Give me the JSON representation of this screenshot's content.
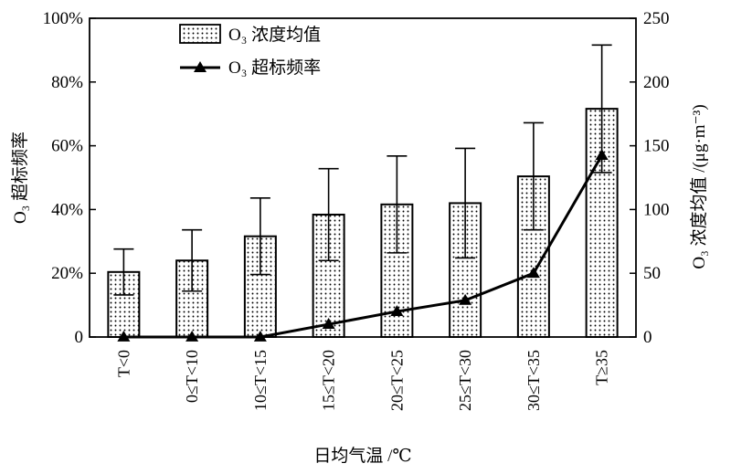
{
  "chart_data": {
    "type": "bar+line",
    "xlabel": "日均气温 /℃",
    "ylabel_left": "O₃ 超标频率",
    "ylabel_right": "O₃ 浓度均值 /(μg·m⁻³)",
    "left_axis": {
      "lim": [
        0,
        100
      ],
      "ticks": [
        "0",
        "20%",
        "40%",
        "60%",
        "80%",
        "100%"
      ]
    },
    "right_axis": {
      "lim": [
        0,
        250
      ],
      "ticks": [
        "0",
        "50",
        "100",
        "150",
        "200",
        "250"
      ]
    },
    "categories": [
      "T<0",
      "0≤T<10",
      "10≤T<15",
      "15≤T<20",
      "20≤T<25",
      "25≤T<30",
      "30≤T<35",
      "T≥35"
    ],
    "bar_series": {
      "name": "O₃ 浓度均值",
      "axis": "right",
      "values": [
        51,
        60,
        79,
        96,
        104,
        105,
        126,
        179
      ],
      "error_plus": [
        18,
        24,
        30,
        36,
        38,
        43,
        42,
        50
      ],
      "error_minus": [
        18,
        24,
        30,
        36,
        38,
        43,
        42,
        50
      ]
    },
    "line_series": {
      "name": "O₃ 超标频率",
      "axis": "left",
      "values": [
        0,
        0,
        0,
        4,
        8,
        11.5,
        20,
        57
      ]
    },
    "legend": [
      {
        "label": "O₃ 浓度均值",
        "kind": "bar"
      },
      {
        "label": "O₃ 超标频率",
        "kind": "line"
      }
    ],
    "legend_position": "top-left"
  }
}
